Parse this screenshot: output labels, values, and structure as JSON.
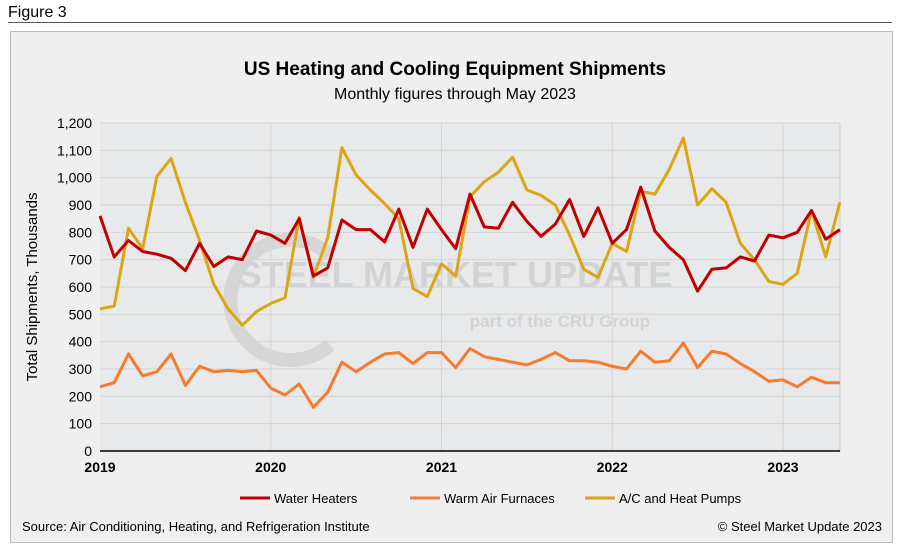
{
  "figure_label": "Figure 3",
  "source": "Source: Air Conditioning, Heating, and Refrigeration Institute",
  "copyright": "© Steel Market Update 2023",
  "watermark": {
    "line1": "STEEL MARKET UPDATE",
    "line2": "part of the CRU Group"
  },
  "chart_data": {
    "type": "line",
    "title": "US Heating and Cooling Equipment Shipments",
    "subtitle": "Monthly figures through May 2023",
    "ylabel": "Total Shipments, Thousands",
    "xlabel": "",
    "ylim": [
      0,
      1200
    ],
    "yticks": [
      "0",
      "100",
      "200",
      "300",
      "400",
      "500",
      "600",
      "700",
      "800",
      "900",
      "1,000",
      "1,100",
      "1,200"
    ],
    "xticks": [
      "2019",
      "2020",
      "2021",
      "2022",
      "2023"
    ],
    "x_start": "2019-01",
    "x_end": "2023-05",
    "grid": true,
    "legend": "bottom",
    "series": [
      {
        "name": "Water Heaters",
        "color": "#c00000",
        "values": [
          860,
          710,
          770,
          730,
          720,
          705,
          660,
          760,
          675,
          710,
          700,
          805,
          790,
          760,
          850,
          640,
          670,
          845,
          810,
          810,
          765,
          885,
          745,
          885,
          810,
          740,
          940,
          820,
          815,
          910,
          840,
          785,
          830,
          920,
          785,
          890,
          760,
          810,
          965,
          805,
          745,
          700,
          585,
          665,
          670,
          710,
          695,
          790,
          780,
          800,
          880,
          775,
          810
        ]
      },
      {
        "name": "Warm Air Furnaces",
        "color": "#f47b30",
        "values": [
          235,
          250,
          355,
          275,
          290,
          355,
          240,
          310,
          290,
          295,
          290,
          295,
          230,
          205,
          245,
          160,
          215,
          325,
          290,
          325,
          355,
          360,
          320,
          360,
          360,
          305,
          375,
          345,
          335,
          325,
          315,
          335,
          360,
          330,
          330,
          325,
          310,
          300,
          365,
          325,
          330,
          395,
          305,
          365,
          355,
          320,
          290,
          255,
          260,
          235,
          270,
          250,
          250
        ]
      },
      {
        "name": "A/C and Heat Pumps",
        "color": "#dba514",
        "values": [
          520,
          530,
          815,
          740,
          1005,
          1070,
          910,
          770,
          610,
          520,
          460,
          510,
          540,
          560,
          855,
          635,
          780,
          1110,
          1010,
          955,
          905,
          850,
          595,
          565,
          685,
          640,
          930,
          985,
          1020,
          1075,
          955,
          935,
          900,
          790,
          665,
          635,
          760,
          730,
          950,
          940,
          1030,
          1145,
          900,
          960,
          910,
          760,
          700,
          620,
          610,
          650,
          880,
          710,
          910
        ]
      }
    ]
  }
}
